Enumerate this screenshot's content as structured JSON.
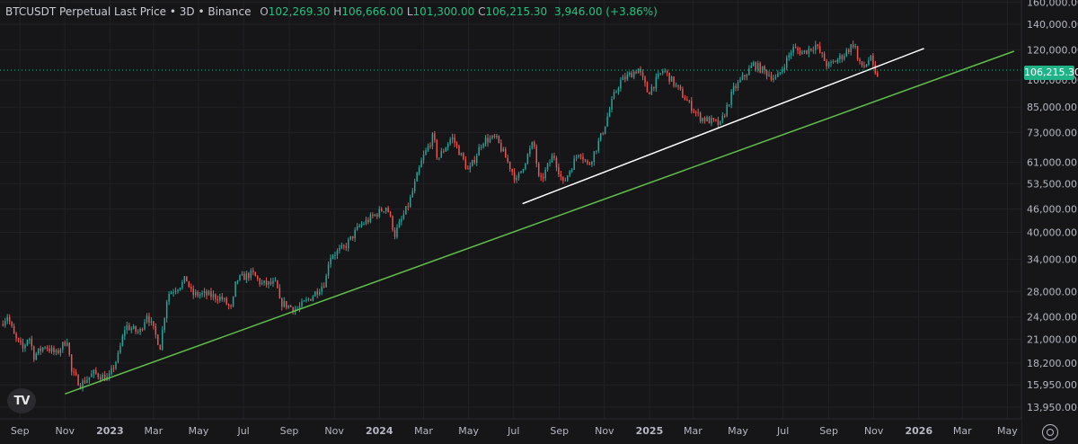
{
  "header": {
    "symbol": "BTCUSDT Perpetual Last Price • 3D • Binance",
    "open_label": "O",
    "open": "102,269.30",
    "high_label": "H",
    "high": "106,666.00",
    "low_label": "L",
    "low": "101,300.00",
    "close_label": "C",
    "close": "106,215.30",
    "change": "3,946.00 (+3.86%)"
  },
  "logo_text": "TV",
  "last_price_badge": "106,215.30",
  "colors": {
    "background": "#161619",
    "up": "#26a69a",
    "down": "#ef5350",
    "green_line": "#5fbf4a",
    "white_line": "#ffffff",
    "badge": "#20b388",
    "axis_text": "#b5b8c2",
    "grid": "#222226"
  },
  "icons": [
    "tradingview-logo-icon",
    "settings-icon"
  ],
  "chart_data": {
    "type": "candlestick",
    "y_scale": "log",
    "ylim": [
      13000,
      162000
    ],
    "xlim": [
      "2022-08-05",
      "2026-05-20"
    ],
    "y_ticks": [
      {
        "value": 160000,
        "label": "160,000.00"
      },
      {
        "value": 140000,
        "label": "140,000.00"
      },
      {
        "value": 120000,
        "label": "120,000.00"
      },
      {
        "value": 100000,
        "label": "100,000.00"
      },
      {
        "value": 85000,
        "label": "85,000.00"
      },
      {
        "value": 73000,
        "label": "73,000.00"
      },
      {
        "value": 61000,
        "label": "61,000.00"
      },
      {
        "value": 53500,
        "label": "53,500.00"
      },
      {
        "value": 46000,
        "label": "46,000.00"
      },
      {
        "value": 40000,
        "label": "40,000.00"
      },
      {
        "value": 34000,
        "label": "34,000.00"
      },
      {
        "value": 28000,
        "label": "28,000.00"
      },
      {
        "value": 24000,
        "label": "24,000.00"
      },
      {
        "value": 21000,
        "label": "21,000.00"
      },
      {
        "value": 18200,
        "label": "18,200.00"
      },
      {
        "value": 15950,
        "label": "15,950.00"
      },
      {
        "value": 13950,
        "label": "13,950.00"
      }
    ],
    "x_ticks": [
      {
        "date": "2022-09-01",
        "label": "Sep"
      },
      {
        "date": "2022-11-01",
        "label": "Nov"
      },
      {
        "date": "2023-01-01",
        "label": "2023"
      },
      {
        "date": "2023-03-01",
        "label": "Mar"
      },
      {
        "date": "2023-05-01",
        "label": "May"
      },
      {
        "date": "2023-07-01",
        "label": "Jul"
      },
      {
        "date": "2023-09-01",
        "label": "Sep"
      },
      {
        "date": "2023-11-01",
        "label": "Nov"
      },
      {
        "date": "2024-01-01",
        "label": "2024"
      },
      {
        "date": "2024-03-01",
        "label": "Mar"
      },
      {
        "date": "2024-05-01",
        "label": "May"
      },
      {
        "date": "2024-07-01",
        "label": "Jul"
      },
      {
        "date": "2024-09-01",
        "label": "Sep"
      },
      {
        "date": "2024-11-01",
        "label": "Nov"
      },
      {
        "date": "2025-01-01",
        "label": "2025"
      },
      {
        "date": "2025-03-01",
        "label": "Mar"
      },
      {
        "date": "2025-05-01",
        "label": "May"
      },
      {
        "date": "2025-07-01",
        "label": "Jul"
      },
      {
        "date": "2025-09-01",
        "label": "Sep"
      },
      {
        "date": "2025-11-01",
        "label": "Nov"
      },
      {
        "date": "2026-01-01",
        "label": "2026"
      },
      {
        "date": "2026-03-01",
        "label": "Mar"
      },
      {
        "date": "2026-05-01",
        "label": "May"
      }
    ],
    "price_path": [
      [
        "2022-08-06",
        23000
      ],
      [
        "2022-08-15",
        24200
      ],
      [
        "2022-08-25",
        21200
      ],
      [
        "2022-09-05",
        19800
      ],
      [
        "2022-09-13",
        21500
      ],
      [
        "2022-09-20",
        19000
      ],
      [
        "2022-10-05",
        20200
      ],
      [
        "2022-10-20",
        19200
      ],
      [
        "2022-11-04",
        21000
      ],
      [
        "2022-11-10",
        17200
      ],
      [
        "2022-11-22",
        16000
      ],
      [
        "2022-12-10",
        17100
      ],
      [
        "2022-12-30",
        16550
      ],
      [
        "2023-01-12",
        19000
      ],
      [
        "2023-01-22",
        22800
      ],
      [
        "2023-02-10",
        21800
      ],
      [
        "2023-02-20",
        24500
      ],
      [
        "2023-03-10",
        20100
      ],
      [
        "2023-03-20",
        27500
      ],
      [
        "2023-04-10",
        29500
      ],
      [
        "2023-04-14",
        30400
      ],
      [
        "2023-04-22",
        27500
      ],
      [
        "2023-05-10",
        27500
      ],
      [
        "2023-06-01",
        26900
      ],
      [
        "2023-06-15",
        25100
      ],
      [
        "2023-06-21",
        30000
      ],
      [
        "2023-07-13",
        31200
      ],
      [
        "2023-07-25",
        29300
      ],
      [
        "2023-08-15",
        29300
      ],
      [
        "2023-08-18",
        26300
      ],
      [
        "2023-09-11",
        25100
      ],
      [
        "2023-09-30",
        27000
      ],
      [
        "2023-10-20",
        29700
      ],
      [
        "2023-10-25",
        34500
      ],
      [
        "2023-11-15",
        36500
      ],
      [
        "2023-12-05",
        41500
      ],
      [
        "2023-12-20",
        43500
      ],
      [
        "2024-01-11",
        46800
      ],
      [
        "2024-01-22",
        39500
      ],
      [
        "2024-02-10",
        47500
      ],
      [
        "2024-02-28",
        62000
      ],
      [
        "2024-03-14",
        71500
      ],
      [
        "2024-03-20",
        62000
      ],
      [
        "2024-04-08",
        71000
      ],
      [
        "2024-04-20",
        64000
      ],
      [
        "2024-05-01",
        57500
      ],
      [
        "2024-05-20",
        69500
      ],
      [
        "2024-06-07",
        70500
      ],
      [
        "2024-06-24",
        60500
      ],
      [
        "2024-07-05",
        54500
      ],
      [
        "2024-07-28",
        69000
      ],
      [
        "2024-08-05",
        53500
      ],
      [
        "2024-08-24",
        64000
      ],
      [
        "2024-09-06",
        53500
      ],
      [
        "2024-09-28",
        65500
      ],
      [
        "2024-10-10",
        59500
      ],
      [
        "2024-10-29",
        72500
      ],
      [
        "2024-11-13",
        90000
      ],
      [
        "2024-11-22",
        99000
      ],
      [
        "2024-12-17",
        107000
      ],
      [
        "2024-12-30",
        92500
      ],
      [
        "2025-01-20",
        106500
      ],
      [
        "2025-02-03",
        98000
      ],
      [
        "2025-02-28",
        84500
      ],
      [
        "2025-03-10",
        80000
      ],
      [
        "2025-04-07",
        76500
      ],
      [
        "2025-04-25",
        94500
      ],
      [
        "2025-05-22",
        110000
      ],
      [
        "2025-06-22",
        100500
      ],
      [
        "2025-07-14",
        121000
      ],
      [
        "2025-07-28",
        118000
      ],
      [
        "2025-08-14",
        123500
      ],
      [
        "2025-08-31",
        108500
      ],
      [
        "2025-09-20",
        116000
      ],
      [
        "2025-10-06",
        125500
      ],
      [
        "2025-10-11",
        110000
      ],
      [
        "2025-10-20",
        108500
      ],
      [
        "2025-10-27",
        115000
      ],
      [
        "2025-11-04",
        101000
      ],
      [
        "2025-11-08",
        106215
      ]
    ],
    "trendlines": [
      {
        "color": "green",
        "start": [
          "2022-11-01",
          15100
        ],
        "end": [
          "2026-05-10",
          119000
        ]
      },
      {
        "color": "white",
        "start": [
          "2024-07-13",
          47500
        ],
        "end": [
          "2026-01-08",
          121000
        ]
      }
    ],
    "last_price": 106215.3
  }
}
